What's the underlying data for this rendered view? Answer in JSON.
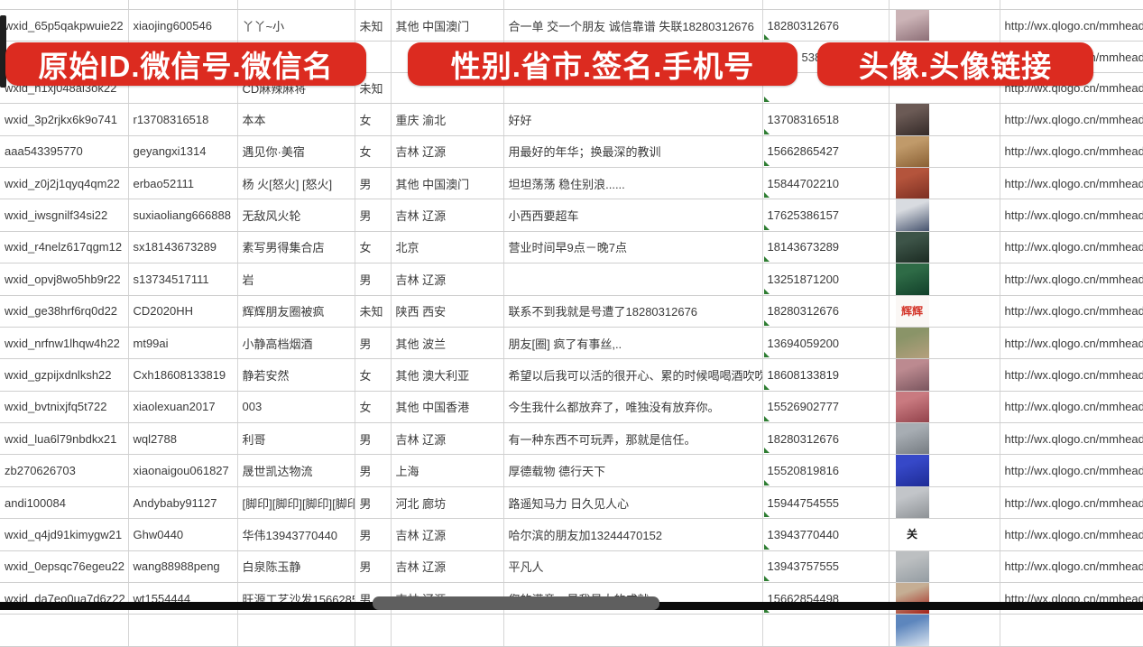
{
  "banners": {
    "left": {
      "label": "原始ID.微信号.微信名"
    },
    "middle": {
      "label": "性别.省市.签名.手机号"
    },
    "right": {
      "label": "头像.头像链接"
    }
  },
  "colors": {
    "banner_red": "#dc2b20",
    "gridline": "#d6d6d6",
    "cell_text": "#3a3a3a",
    "marker_green": "#2e7d32"
  },
  "table": {
    "column_names": [
      "原始ID",
      "微信号",
      "微信名",
      "性别",
      "省市",
      "签名",
      "手机号",
      "头像",
      "头像链接"
    ],
    "rows": [
      {
        "wxid": "wxid_65p5qakpwuie22",
        "wechat_id": "xiaojing600546",
        "nickname": "丫丫~小",
        "gender": "未知",
        "region": "其他 中国澳门",
        "signature": "合一单 交一个朋友 诚信靠谱 失联18280312676",
        "phone": "18280312676",
        "avatar": {
          "t": "photo",
          "c1": "#cbb3b6",
          "c2": "#8d6f77",
          "d": "woman-selfie"
        },
        "avatar_url": "http://wx.qlogo.cn/mmhead"
      },
      {
        "wxid": "",
        "wechat_id": "",
        "nickname": "",
        "gender": "",
        "region": "",
        "signature": "",
        "phone": "5386",
        "phone_partial": true,
        "avatar": null,
        "avatar_url": "http://wx.qlogo.cn/mmhead"
      },
      {
        "wxid": "wxid_h1xj048al3ok22",
        "wechat_id": "",
        "nickname": "CD麻辣麻将",
        "gender": "未知",
        "region": "",
        "signature": "",
        "phone": "",
        "avatar": null,
        "avatar_url": "http://wx.qlogo.cn/mmhead"
      },
      {
        "wxid": "wxid_3p2rjkx6k9o741",
        "wechat_id": "r13708316518",
        "nickname": "本本",
        "gender": "女",
        "region": "重庆 渝北",
        "signature": "好好",
        "phone": "13708316518",
        "avatar": {
          "t": "photo",
          "c1": "#6b5a55",
          "c2": "#342a28",
          "d": "dark-haired-woman"
        },
        "avatar_url": "http://wx.qlogo.cn/mmhead"
      },
      {
        "wxid": "aaa543395770",
        "wechat_id": "geyangxi1314",
        "nickname": "遇见你·美宿",
        "gender": "女",
        "region": "吉林 辽源",
        "signature": "用最好的年华；换最深的教训",
        "phone": "15662865427",
        "avatar": {
          "t": "photo",
          "c1": "#c09a6a",
          "c2": "#8a6034",
          "d": "sepia-figures"
        },
        "avatar_url": "http://wx.qlogo.cn/mmhead"
      },
      {
        "wxid": "wxid_z0j2j1qyq4qm22",
        "wechat_id": "erbao52111",
        "nickname": "杨 火[怒火] [怒火]",
        "gender": "男",
        "region": "其他 中国澳门",
        "signature": "坦坦荡荡 稳住别浪......",
        "phone": "15844702210",
        "avatar": {
          "t": "photo",
          "c1": "#b4543c",
          "c2": "#7d2f22",
          "d": "red-group"
        },
        "avatar_url": "http://wx.qlogo.cn/mmhead"
      },
      {
        "wxid": "wxid_iwsgnilf34si22",
        "wechat_id": "suxiaoliang666888",
        "nickname": "无敌风火轮",
        "gender": "男",
        "region": "吉林 辽源",
        "signature": "小西西要超车",
        "phone": "17625386157",
        "avatar": {
          "t": "photo",
          "c1": "#d8dbe0",
          "c2": "#46536e",
          "d": "person-in-car"
        },
        "avatar_url": "http://wx.qlogo.cn/mmhead"
      },
      {
        "wxid": "wxid_r4nelz617qgm12",
        "wechat_id": "sx18143673289",
        "nickname": "素写男得集合店",
        "gender": "女",
        "region": "北京",
        "signature": "营业时间早9点－晚7点",
        "phone": "18143673289",
        "avatar": {
          "t": "photo",
          "c1": "#3d5448",
          "c2": "#1b2b22",
          "d": "dark-storefront"
        },
        "avatar_url": "http://wx.qlogo.cn/mmhead"
      },
      {
        "wxid": "wxid_opvj8wo5hb9r22",
        "wechat_id": "s13734517111",
        "nickname": "岩",
        "gender": "男",
        "region": "吉林 辽源",
        "signature": "",
        "phone": "13251871200",
        "avatar": {
          "t": "photo",
          "c1": "#2e6b46",
          "c2": "#12402a",
          "d": "green-poster"
        },
        "avatar_url": "http://wx.qlogo.cn/mmhead"
      },
      {
        "wxid": "wxid_ge38hrf6rq0d22",
        "wechat_id": "CD2020HH",
        "nickname": "辉辉朋友圈被疯",
        "gender": "未知",
        "region": "陕西 西安",
        "signature": "联系不到我就是号遭了18280312676",
        "phone": "18280312676",
        "avatar": {
          "t": "text",
          "bg": "#faf7f5",
          "fg": "#d4372c",
          "label": "辉辉",
          "d": "red-characters"
        },
        "avatar_url": "http://wx.qlogo.cn/mmhead"
      },
      {
        "wxid": "wxid_nrfnw1lhqw4h22",
        "wechat_id": "mt99ai",
        "nickname": "小静高档烟酒",
        "gender": "男",
        "region": "其他 波兰",
        "signature": "朋友[圈] 疯了有事丝,..",
        "phone": "13694059200",
        "avatar": {
          "t": "photo",
          "c1": "#8a9468",
          "c2": "#b59f7d",
          "d": "woman-sunglasses"
        },
        "avatar_url": "http://wx.qlogo.cn/mmhead"
      },
      {
        "wxid": "wxid_gzpijxdnlksh22",
        "wechat_id": "Cxh18608133819",
        "nickname": "静若安然",
        "gender": "女",
        "region": "其他 澳大利亚",
        "signature": "希望以后我可以活的很开心、累的时候喝喝酒吹吹[",
        "phone": "18608133819",
        "avatar": {
          "t": "photo",
          "c1": "#bc8a90",
          "c2": "#7a555e",
          "d": "selfie-woman"
        },
        "avatar_url": "http://wx.qlogo.cn/mmhead"
      },
      {
        "wxid": "wxid_bvtnixjfq5t722",
        "wechat_id": "xiaolexuan2017",
        "nickname": "003",
        "gender": "女",
        "region": "其他 中国香港",
        "signature": "今生我什么都放弃了，唯独没有放弃你。",
        "phone": "15526902777",
        "avatar": {
          "t": "photo",
          "c1": "#c97a80",
          "c2": "#93434c",
          "d": "pink-hair-woman"
        },
        "avatar_url": "http://wx.qlogo.cn/mmhead"
      },
      {
        "wxid": "wxid_lua6l79nbdkx21",
        "wechat_id": "wql2788",
        "nickname": "利哥",
        "gender": "男",
        "region": "吉林 辽源",
        "signature": "有一种东西不可玩弄，那就是信任。",
        "phone": "18280312676",
        "avatar": {
          "t": "photo",
          "c1": "#a7adb3",
          "c2": "#767c82",
          "d": "man-with-cap"
        },
        "avatar_url": "http://wx.qlogo.cn/mmhead"
      },
      {
        "wxid": "zb270626703",
        "wechat_id": "xiaonaigou061827",
        "nickname": "晟世凯达物流",
        "gender": "男",
        "region": "上海",
        "signature": "厚德载物 德行天下",
        "phone": "15520819816",
        "avatar": {
          "t": "photo",
          "c1": "#3648c8",
          "c2": "#1e2c96",
          "d": "blue-qr-card"
        },
        "avatar_url": "http://wx.qlogo.cn/mmhead"
      },
      {
        "wxid": "andi100084",
        "wechat_id": "Andybaby91127",
        "nickname": "[脚印][脚印][脚印][脚印",
        "gender": "男",
        "region": "河北 廊坊",
        "signature": "路遥知马力 日久见人心",
        "phone": "15944754555",
        "avatar": {
          "t": "photo",
          "c1": "#c2c5c9",
          "c2": "#8e9296",
          "d": "grey-storefront"
        },
        "avatar_url": "http://wx.qlogo.cn/mmhead"
      },
      {
        "wxid": "wxid_q4jd91kimygw21",
        "wechat_id": "Ghw0440",
        "nickname": "华伟13943770440",
        "gender": "男",
        "region": "吉林 辽源",
        "signature": "哈尔滨的朋友加13244470152",
        "phone": "13943770440",
        "avatar": {
          "t": "text",
          "bg": "#ffffff",
          "fg": "#1a1a1a",
          "label": "关",
          "d": "calligraphy"
        },
        "avatar_url": "http://wx.qlogo.cn/mmhead"
      },
      {
        "wxid": "wxid_0epsqc76egeu22",
        "wechat_id": "wang88988peng",
        "nickname": "白泉陈玉静",
        "gender": "男",
        "region": "吉林 辽源",
        "signature": "平凡人",
        "phone": "13943757555",
        "avatar": {
          "t": "photo",
          "c1": "#bcbfc1",
          "c2": "#949ca2",
          "d": "beach-person"
        },
        "avatar_url": "http://wx.qlogo.cn/mmhead"
      },
      {
        "wxid": "wxid_da7eo0ua7d6z22",
        "wechat_id": "wt1554444",
        "nickname": "旺源工艺沙发15662854",
        "gender": "男",
        "region": "吉林 辽源",
        "signature": "您的满意，是我最大的成就",
        "phone": "15662854498",
        "avatar": {
          "t": "photo",
          "c1": "#c5ae94",
          "c2": "#a32017",
          "d": "china-jiayou"
        },
        "avatar_url": "http://wx.qlogo.cn/mmhead"
      },
      {
        "wxid": "",
        "wechat_id": "",
        "nickname": "",
        "gender": "",
        "region": "",
        "signature": "",
        "phone": "",
        "avatar": {
          "t": "photo",
          "c1": "#5d86bd",
          "c2": "#d9e4f0",
          "d": "person-blue"
        },
        "avatar_url": ""
      }
    ]
  }
}
